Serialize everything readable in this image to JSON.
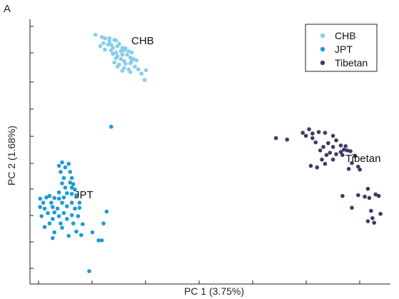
{
  "chart_data": {
    "type": "scatter",
    "panel_label": "A",
    "xlabel": "PC 1 (3.75%)",
    "ylabel": "PC 2 (1.68%)",
    "xlim": [
      0,
      100
    ],
    "ylim": [
      0,
      100
    ],
    "grid": false,
    "tick_labels_shown": false,
    "legend_position": "top-right",
    "series": [
      {
        "name": "CHB",
        "color": "#86cdee",
        "points": [
          [
            18.2,
            95.0
          ],
          [
            20.0,
            94.1
          ],
          [
            20.9,
            93.6
          ],
          [
            22.2,
            93.6
          ],
          [
            23.6,
            93.0
          ],
          [
            22.2,
            92.5
          ],
          [
            24.1,
            92.8
          ],
          [
            20.5,
            91.7
          ],
          [
            21.8,
            91.1
          ],
          [
            22.7,
            91.1
          ],
          [
            25.0,
            91.4
          ],
          [
            19.6,
            90.5
          ],
          [
            24.5,
            90.5
          ],
          [
            23.2,
            89.9
          ],
          [
            25.9,
            89.9
          ],
          [
            26.8,
            89.6
          ],
          [
            20.9,
            89.1
          ],
          [
            22.7,
            88.8
          ],
          [
            24.1,
            88.0
          ],
          [
            25.5,
            88.5
          ],
          [
            26.4,
            88.8
          ],
          [
            27.7,
            88.5
          ],
          [
            28.6,
            88.0
          ],
          [
            23.2,
            87.4
          ],
          [
            24.5,
            86.6
          ],
          [
            25.9,
            87.1
          ],
          [
            27.3,
            87.1
          ],
          [
            28.2,
            86.0
          ],
          [
            24.1,
            85.7
          ],
          [
            25.5,
            85.4
          ],
          [
            29.1,
            85.4
          ],
          [
            26.4,
            84.6
          ],
          [
            28.6,
            84.6
          ],
          [
            30.0,
            84.9
          ],
          [
            23.6,
            84.0
          ],
          [
            25.0,
            83.2
          ],
          [
            26.8,
            83.5
          ],
          [
            28.2,
            83.7
          ],
          [
            24.5,
            82.4
          ],
          [
            26.4,
            81.8
          ],
          [
            29.5,
            82.4
          ],
          [
            27.7,
            81.3
          ],
          [
            30.5,
            81.3
          ],
          [
            25.9,
            80.7
          ],
          [
            28.2,
            80.2
          ],
          [
            31.4,
            79.6
          ],
          [
            32.7,
            81.0
          ],
          [
            32.3,
            77.1
          ]
        ]
      },
      {
        "name": "JPT",
        "color": "#1c9ad8",
        "points": [
          [
            22.7,
            58.6
          ],
          [
            8.6,
            44.5
          ],
          [
            10.5,
            43.9
          ],
          [
            7.7,
            43.1
          ],
          [
            9.5,
            42.5
          ],
          [
            8.2,
            40.7
          ],
          [
            10.9,
            40.7
          ],
          [
            9.1,
            38.3
          ],
          [
            11.4,
            38.3
          ],
          [
            8.6,
            36.2
          ],
          [
            10.9,
            36.5
          ],
          [
            11.8,
            35.9
          ],
          [
            9.5,
            34.5
          ],
          [
            11.4,
            34.5
          ],
          [
            12.3,
            33.7
          ],
          [
            7.7,
            32.6
          ],
          [
            10.0,
            32.3
          ],
          [
            11.4,
            32.0
          ],
          [
            12.7,
            31.5
          ],
          [
            2.3,
            30.1
          ],
          [
            4.1,
            30.6
          ],
          [
            5.0,
            31.2
          ],
          [
            6.4,
            30.4
          ],
          [
            7.7,
            30.1
          ],
          [
            9.1,
            30.6
          ],
          [
            3.2,
            28.5
          ],
          [
            5.5,
            28.5
          ],
          [
            8.6,
            28.5
          ],
          [
            11.4,
            28.5
          ],
          [
            13.6,
            28.5
          ],
          [
            2.3,
            26.8
          ],
          [
            3.6,
            26.2
          ],
          [
            5.9,
            26.8
          ],
          [
            7.3,
            26.2
          ],
          [
            10.0,
            27.1
          ],
          [
            12.3,
            26.2
          ],
          [
            13.6,
            26.5
          ],
          [
            4.5,
            24.4
          ],
          [
            6.4,
            24.7
          ],
          [
            9.1,
            24.4
          ],
          [
            11.4,
            23.6
          ],
          [
            2.7,
            23.2
          ],
          [
            7.7,
            23.2
          ],
          [
            13.2,
            23.2
          ],
          [
            21.4,
            25.0
          ],
          [
            5.9,
            22.1
          ],
          [
            10.0,
            22.1
          ],
          [
            5.0,
            20.3
          ],
          [
            8.2,
            20.3
          ],
          [
            11.8,
            20.3
          ],
          [
            14.5,
            20.0
          ],
          [
            20.5,
            20.3
          ],
          [
            3.6,
            18.9
          ],
          [
            8.6,
            18.6
          ],
          [
            12.7,
            17.1
          ],
          [
            6.4,
            16.8
          ],
          [
            10.5,
            15.4
          ],
          [
            14.1,
            15.7
          ],
          [
            17.3,
            16.8
          ],
          [
            5.9,
            14.5
          ],
          [
            19.1,
            13.6
          ],
          [
            20.0,
            13.6
          ],
          [
            16.4,
            1.4
          ]
        ]
      },
      {
        "name": "Tibetan",
        "color": "#3f3a66",
        "points": [
          [
            70.0,
            54.1
          ],
          [
            73.2,
            53.5
          ],
          [
            77.7,
            56.2
          ],
          [
            79.5,
            57.6
          ],
          [
            80.5,
            55.9
          ],
          [
            82.3,
            56.5
          ],
          [
            84.1,
            56.2
          ],
          [
            86.4,
            55.0
          ],
          [
            78.6,
            55.0
          ],
          [
            80.5,
            54.1
          ],
          [
            87.3,
            53.2
          ],
          [
            81.4,
            52.4
          ],
          [
            85.0,
            52.1
          ],
          [
            88.6,
            51.2
          ],
          [
            83.6,
            50.6
          ],
          [
            86.4,
            50.6
          ],
          [
            90.0,
            50.9
          ],
          [
            82.7,
            49.2
          ],
          [
            85.5,
            48.3
          ],
          [
            88.6,
            48.6
          ],
          [
            89.5,
            49.5
          ],
          [
            90.5,
            49.2
          ],
          [
            91.4,
            48.9
          ],
          [
            84.5,
            47.4
          ],
          [
            87.3,
            47.7
          ],
          [
            89.1,
            47.4
          ],
          [
            92.7,
            47.1
          ],
          [
            86.4,
            45.6
          ],
          [
            83.2,
            45.6
          ],
          [
            84.1,
            43.9
          ],
          [
            91.8,
            44.2
          ],
          [
            93.6,
            42.8
          ],
          [
            80.0,
            43.1
          ],
          [
            81.8,
            42.5
          ],
          [
            90.9,
            41.9
          ],
          [
            94.1,
            41.6
          ],
          [
            96.4,
            34.0
          ],
          [
            93.6,
            31.5
          ],
          [
            98.6,
            31.8
          ],
          [
            95.5,
            30.9
          ],
          [
            96.8,
            30.4
          ],
          [
            99.5,
            31.2
          ],
          [
            89.1,
            31.2
          ],
          [
            91.8,
            26.5
          ],
          [
            97.3,
            25.3
          ],
          [
            100.0,
            24.1
          ],
          [
            97.7,
            22.4
          ],
          [
            96.4,
            21.2
          ],
          [
            98.2,
            20.6
          ]
        ]
      }
    ],
    "annotations": [
      "CHB",
      "JPT",
      "Tibetan"
    ]
  }
}
